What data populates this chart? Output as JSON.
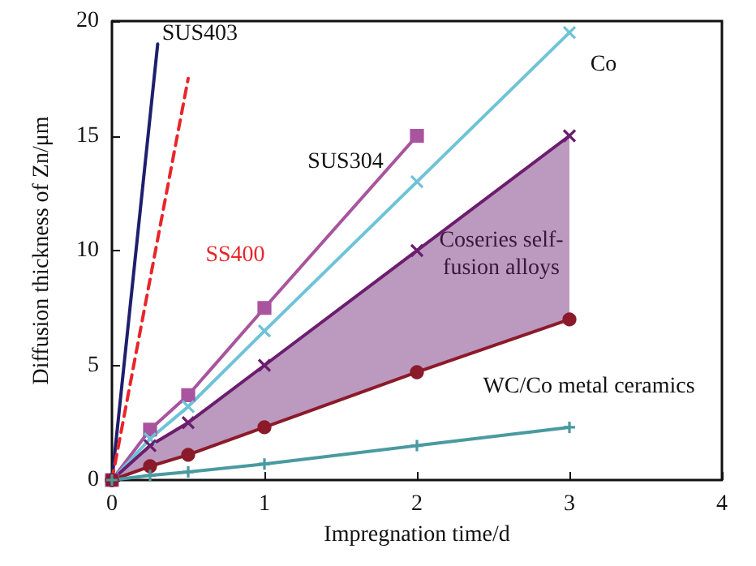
{
  "chart_data": {
    "type": "line",
    "xlabel": "Impregnation time/d",
    "ylabel": "Diffusion thickness of Zn/μm",
    "xlim": [
      0,
      4
    ],
    "xticks": [
      0,
      1,
      2,
      3,
      4
    ],
    "ylim": [
      0,
      20
    ],
    "yticks": [
      0,
      5,
      10,
      15,
      20
    ],
    "grid": false,
    "legend": false,
    "series": [
      {
        "name": "SUS403",
        "color": "#1f1f6e",
        "marker": "none",
        "line_style": "solid",
        "x": [
          0,
          0.3
        ],
        "values": [
          0,
          19
        ]
      },
      {
        "name": "SS400",
        "color": "#e8262a",
        "marker": "none",
        "line_style": "dashed",
        "x": [
          0,
          0.5
        ],
        "values": [
          0,
          17.5
        ]
      },
      {
        "name": "SUS304",
        "color": "#a8549e",
        "marker": "square",
        "line_style": "solid",
        "x": [
          0,
          0.25,
          0.5,
          1,
          2
        ],
        "values": [
          0,
          2.2,
          3.7,
          7.5,
          15
        ]
      },
      {
        "name": "Co",
        "color": "#6ec3d8",
        "marker": "cross",
        "line_style": "solid",
        "x": [
          0,
          0.25,
          0.5,
          1,
          2,
          3
        ],
        "values": [
          0,
          1.8,
          3.2,
          6.5,
          13,
          19.5
        ]
      },
      {
        "name": "Coseries self-\nfusion alloys",
        "color": "#6b1d6e",
        "marker": "cross",
        "line_style": "solid",
        "x": [
          0,
          0.25,
          0.5,
          1,
          2,
          3
        ],
        "values": [
          0,
          1.5,
          2.5,
          5,
          10,
          15
        ],
        "lower": [
          0,
          0.6,
          1.1,
          2.3,
          4.7,
          7
        ],
        "upper": [
          0,
          1.5,
          2.5,
          5,
          10,
          15
        ]
      },
      {
        "color": "#8b1a2a",
        "marker": "circle",
        "line_style": "solid",
        "x": [
          0,
          0.25,
          0.5,
          1,
          2,
          3
        ],
        "values": [
          0,
          0.6,
          1.1,
          2.3,
          4.7,
          7
        ]
      },
      {
        "name": "WC/Co metal ceramics",
        "color": "#4a9aa0",
        "marker": "cross",
        "line_style": "solid",
        "x": [
          0,
          0.25,
          0.5,
          1,
          2,
          3
        ],
        "values": [
          0,
          0.2,
          0.35,
          0.7,
          1.5,
          2.3
        ]
      }
    ]
  }
}
